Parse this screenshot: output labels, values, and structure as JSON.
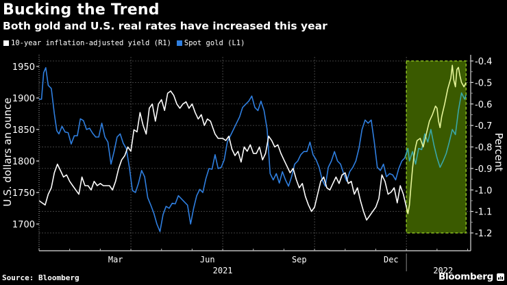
{
  "chart_data": {
    "type": "line",
    "title": "Bucking the Trend",
    "subtitle": "Both gold and U.S. real rates have increased this year",
    "legend": [
      {
        "name": "10-year inflation-adjusted yield (R1)",
        "color": "#ffffff",
        "axis": "right"
      },
      {
        "name": "Spot gold (L1)",
        "color": "#2f7fe0",
        "axis": "left"
      }
    ],
    "left_axis": {
      "label": "U.S. dollars an ounce",
      "ticks": [
        1700,
        1750,
        1800,
        1850,
        1900,
        1950
      ],
      "range": [
        1680,
        1960
      ]
    },
    "right_axis": {
      "label": "Percent",
      "ticks": [
        -0.4,
        -0.5,
        -0.6,
        -0.7,
        -0.8,
        -0.9,
        -1.0,
        -1.1,
        -1.2
      ],
      "tick_labels": [
        "-0.4",
        "-0.5",
        "-0.6",
        "-0.7",
        "-0.8",
        "-0.9",
        "-1.0",
        "-1.1",
        "-1.2"
      ],
      "range": [
        -1.2,
        -0.4
      ]
    },
    "x_axis": {
      "month_labels": [
        {
          "label": "Mar",
          "month": 2.5
        },
        {
          "label": "Jun",
          "month": 5.5
        },
        {
          "label": "Sep",
          "month": 8.5
        },
        {
          "label": "Dec",
          "month": 11.5
        }
      ],
      "year_labels": [
        {
          "label": "2021",
          "month": 6
        },
        {
          "label": "2022",
          "month": 13.2
        }
      ],
      "range_months": [
        0,
        14.1
      ],
      "quarter_gridlines": [
        3,
        6,
        9,
        12
      ]
    },
    "grid": true,
    "highlight": {
      "from_month": 12.0,
      "to_month": 13.95,
      "y_from": -1.2,
      "y_to": -0.4,
      "fill": "#3a5a00",
      "border": "#8dc021",
      "highlight_line_colors": {
        "yield": "#e6f59a",
        "gold": "#3aa7a8"
      }
    },
    "series": [
      {
        "name": "Spot gold (L1)",
        "axis": "left",
        "points_month_value": [
          [
            0.0,
            1898
          ],
          [
            0.08,
            1898
          ],
          [
            0.15,
            1940
          ],
          [
            0.22,
            1948
          ],
          [
            0.3,
            1920
          ],
          [
            0.4,
            1915
          ],
          [
            0.5,
            1875
          ],
          [
            0.58,
            1848
          ],
          [
            0.65,
            1843
          ],
          [
            0.75,
            1855
          ],
          [
            0.85,
            1846
          ],
          [
            0.95,
            1845
          ],
          [
            1.05,
            1827
          ],
          [
            1.15,
            1840
          ],
          [
            1.25,
            1840
          ],
          [
            1.35,
            1867
          ],
          [
            1.45,
            1864
          ],
          [
            1.55,
            1850
          ],
          [
            1.65,
            1852
          ],
          [
            1.75,
            1844
          ],
          [
            1.85,
            1838
          ],
          [
            1.95,
            1838
          ],
          [
            2.05,
            1860
          ],
          [
            2.15,
            1838
          ],
          [
            2.25,
            1830
          ],
          [
            2.35,
            1795
          ],
          [
            2.45,
            1815
          ],
          [
            2.55,
            1838
          ],
          [
            2.65,
            1843
          ],
          [
            2.75,
            1828
          ],
          [
            2.85,
            1820
          ],
          [
            2.95,
            1790
          ],
          [
            3.05,
            1753
          ],
          [
            3.15,
            1750
          ],
          [
            3.25,
            1765
          ],
          [
            3.35,
            1785
          ],
          [
            3.45,
            1775
          ],
          [
            3.55,
            1742
          ],
          [
            3.65,
            1730
          ],
          [
            3.75,
            1717
          ],
          [
            3.85,
            1700
          ],
          [
            3.95,
            1688
          ],
          [
            4.05,
            1715
          ],
          [
            4.15,
            1728
          ],
          [
            4.25,
            1725
          ],
          [
            4.35,
            1733
          ],
          [
            4.45,
            1732
          ],
          [
            4.55,
            1745
          ],
          [
            4.65,
            1740
          ],
          [
            4.75,
            1735
          ],
          [
            4.85,
            1730
          ],
          [
            4.95,
            1700
          ],
          [
            5.05,
            1725
          ],
          [
            5.15,
            1745
          ],
          [
            5.25,
            1755
          ],
          [
            5.35,
            1750
          ],
          [
            5.45,
            1772
          ],
          [
            5.55,
            1788
          ],
          [
            5.65,
            1787
          ],
          [
            5.75,
            1810
          ],
          [
            5.85,
            1788
          ],
          [
            5.95,
            1790
          ],
          [
            6.05,
            1802
          ],
          [
            6.15,
            1830
          ],
          [
            6.3,
            1845
          ],
          [
            6.45,
            1860
          ],
          [
            6.55,
            1870
          ],
          [
            6.65,
            1885
          ],
          [
            6.75,
            1890
          ],
          [
            6.85,
            1895
          ],
          [
            6.95,
            1903
          ],
          [
            7.05,
            1885
          ],
          [
            7.15,
            1880
          ],
          [
            7.25,
            1895
          ],
          [
            7.35,
            1880
          ],
          [
            7.45,
            1850
          ],
          [
            7.55,
            1780
          ],
          [
            7.65,
            1770
          ],
          [
            7.75,
            1780
          ],
          [
            7.85,
            1765
          ],
          [
            7.95,
            1783
          ],
          [
            8.05,
            1770
          ],
          [
            8.15,
            1760
          ],
          [
            8.25,
            1775
          ],
          [
            8.35,
            1795
          ],
          [
            8.45,
            1800
          ],
          [
            8.55,
            1810
          ],
          [
            8.65,
            1815
          ],
          [
            8.75,
            1815
          ],
          [
            8.85,
            1830
          ],
          [
            8.95,
            1810
          ],
          [
            9.05,
            1802
          ],
          [
            9.15,
            1790
          ],
          [
            9.25,
            1770
          ],
          [
            9.35,
            1760
          ],
          [
            9.45,
            1790
          ],
          [
            9.55,
            1800
          ],
          [
            9.65,
            1815
          ],
          [
            9.75,
            1800
          ],
          [
            9.85,
            1795
          ],
          [
            9.95,
            1780
          ],
          [
            10.05,
            1768
          ],
          [
            10.15,
            1783
          ],
          [
            10.25,
            1790
          ],
          [
            10.35,
            1800
          ],
          [
            10.45,
            1820
          ],
          [
            10.55,
            1850
          ],
          [
            10.65,
            1865
          ],
          [
            10.75,
            1860
          ],
          [
            10.85,
            1865
          ],
          [
            10.95,
            1830
          ],
          [
            11.05,
            1790
          ],
          [
            11.15,
            1785
          ],
          [
            11.25,
            1795
          ],
          [
            11.35,
            1775
          ],
          [
            11.45,
            1780
          ],
          [
            11.55,
            1778
          ],
          [
            11.65,
            1770
          ],
          [
            11.75,
            1788
          ],
          [
            11.85,
            1800
          ],
          [
            11.95,
            1805
          ],
          [
            12.05,
            1820
          ],
          [
            12.1,
            1800
          ],
          [
            12.2,
            1815
          ],
          [
            12.3,
            1795
          ],
          [
            12.4,
            1820
          ],
          [
            12.5,
            1818
          ],
          [
            12.6,
            1843
          ],
          [
            12.7,
            1830
          ],
          [
            12.8,
            1850
          ],
          [
            12.9,
            1825
          ],
          [
            13.0,
            1805
          ],
          [
            13.1,
            1790
          ],
          [
            13.2,
            1800
          ],
          [
            13.3,
            1812
          ],
          [
            13.4,
            1830
          ],
          [
            13.5,
            1850
          ],
          [
            13.6,
            1842
          ],
          [
            13.7,
            1880
          ],
          [
            13.8,
            1908
          ],
          [
            13.9,
            1898
          ],
          [
            13.95,
            1905
          ]
        ]
      },
      {
        "name": "10-year inflation-adjusted yield (R1)",
        "axis": "right",
        "points_month_value": [
          [
            0.0,
            -1.05
          ],
          [
            0.1,
            -1.06
          ],
          [
            0.2,
            -1.07
          ],
          [
            0.3,
            -1.02
          ],
          [
            0.4,
            -0.99
          ],
          [
            0.5,
            -0.92
          ],
          [
            0.6,
            -0.88
          ],
          [
            0.7,
            -0.91
          ],
          [
            0.8,
            -0.94
          ],
          [
            0.9,
            -0.93
          ],
          [
            1.0,
            -0.96
          ],
          [
            1.1,
            -0.98
          ],
          [
            1.2,
            -1.0
          ],
          [
            1.3,
            -1.02
          ],
          [
            1.4,
            -0.94
          ],
          [
            1.5,
            -0.98
          ],
          [
            1.6,
            -0.98
          ],
          [
            1.7,
            -1.0
          ],
          [
            1.8,
            -0.96
          ],
          [
            1.9,
            -0.98
          ],
          [
            2.0,
            -0.97
          ],
          [
            2.1,
            -0.98
          ],
          [
            2.2,
            -0.98
          ],
          [
            2.3,
            -0.98
          ],
          [
            2.4,
            -1.0
          ],
          [
            2.5,
            -0.96
          ],
          [
            2.6,
            -0.9
          ],
          [
            2.7,
            -0.86
          ],
          [
            2.8,
            -0.84
          ],
          [
            2.9,
            -0.8
          ],
          [
            3.0,
            -0.82
          ],
          [
            3.1,
            -0.72
          ],
          [
            3.2,
            -0.73
          ],
          [
            3.3,
            -0.64
          ],
          [
            3.4,
            -0.7
          ],
          [
            3.5,
            -0.74
          ],
          [
            3.6,
            -0.62
          ],
          [
            3.7,
            -0.6
          ],
          [
            3.8,
            -0.68
          ],
          [
            3.9,
            -0.6
          ],
          [
            4.0,
            -0.58
          ],
          [
            4.1,
            -0.63
          ],
          [
            4.2,
            -0.55
          ],
          [
            4.3,
            -0.54
          ],
          [
            4.4,
            -0.56
          ],
          [
            4.5,
            -0.6
          ],
          [
            4.6,
            -0.62
          ],
          [
            4.7,
            -0.6
          ],
          [
            4.8,
            -0.59
          ],
          [
            4.9,
            -0.62
          ],
          [
            5.0,
            -0.6
          ],
          [
            5.1,
            -0.64
          ],
          [
            5.2,
            -0.67
          ],
          [
            5.3,
            -0.65
          ],
          [
            5.4,
            -0.7
          ],
          [
            5.5,
            -0.67
          ],
          [
            5.6,
            -0.68
          ],
          [
            5.75,
            -0.74
          ],
          [
            5.85,
            -0.76
          ],
          [
            6.0,
            -0.76
          ],
          [
            6.1,
            -0.77
          ],
          [
            6.2,
            -0.75
          ],
          [
            6.3,
            -0.81
          ],
          [
            6.4,
            -0.84
          ],
          [
            6.5,
            -0.82
          ],
          [
            6.6,
            -0.87
          ],
          [
            6.7,
            -0.8
          ],
          [
            6.8,
            -0.82
          ],
          [
            6.9,
            -0.79
          ],
          [
            7.0,
            -0.83
          ],
          [
            7.1,
            -0.83
          ],
          [
            7.2,
            -0.8
          ],
          [
            7.3,
            -0.86
          ],
          [
            7.4,
            -0.83
          ],
          [
            7.5,
            -0.75
          ],
          [
            7.6,
            -0.77
          ],
          [
            7.7,
            -0.8
          ],
          [
            7.8,
            -0.79
          ],
          [
            7.9,
            -0.83
          ],
          [
            8.0,
            -0.86
          ],
          [
            8.1,
            -0.89
          ],
          [
            8.2,
            -0.92
          ],
          [
            8.3,
            -0.9
          ],
          [
            8.4,
            -0.95
          ],
          [
            8.5,
            -0.99
          ],
          [
            8.6,
            -0.97
          ],
          [
            8.7,
            -1.03
          ],
          [
            8.8,
            -1.07
          ],
          [
            8.9,
            -1.1
          ],
          [
            9.0,
            -1.08
          ],
          [
            9.1,
            -1.02
          ],
          [
            9.2,
            -0.96
          ],
          [
            9.3,
            -0.94
          ],
          [
            9.4,
            -0.99
          ],
          [
            9.5,
            -1.0
          ],
          [
            9.6,
            -0.97
          ],
          [
            9.7,
            -0.94
          ],
          [
            9.8,
            -0.97
          ],
          [
            9.9,
            -0.93
          ],
          [
            10.0,
            -0.92
          ],
          [
            10.1,
            -0.97
          ],
          [
            10.2,
            -0.96
          ],
          [
            10.3,
            -1.02
          ],
          [
            10.4,
            -0.99
          ],
          [
            10.5,
            -1.05
          ],
          [
            10.6,
            -1.1
          ],
          [
            10.7,
            -1.14
          ],
          [
            10.8,
            -1.12
          ],
          [
            10.9,
            -1.1
          ],
          [
            11.0,
            -1.08
          ],
          [
            11.1,
            -1.04
          ],
          [
            11.2,
            -0.93
          ],
          [
            11.3,
            -0.96
          ],
          [
            11.4,
            -1.02
          ],
          [
            11.5,
            -1.01
          ],
          [
            11.6,
            -0.99
          ],
          [
            11.7,
            -1.06
          ],
          [
            11.8,
            -0.98
          ],
          [
            11.9,
            -1.02
          ],
          [
            12.0,
            -1.08
          ],
          [
            12.05,
            -1.11
          ],
          [
            12.1,
            -1.07
          ],
          [
            12.15,
            -0.98
          ],
          [
            12.2,
            -0.9
          ],
          [
            12.25,
            -0.84
          ],
          [
            12.3,
            -0.8
          ],
          [
            12.35,
            -0.77
          ],
          [
            12.45,
            -0.76
          ],
          [
            12.55,
            -0.8
          ],
          [
            12.65,
            -0.74
          ],
          [
            12.75,
            -0.68
          ],
          [
            12.85,
            -0.65
          ],
          [
            12.95,
            -0.61
          ],
          [
            13.0,
            -0.62
          ],
          [
            13.05,
            -0.68
          ],
          [
            13.1,
            -0.71
          ],
          [
            13.15,
            -0.66
          ],
          [
            13.25,
            -0.6
          ],
          [
            13.35,
            -0.53
          ],
          [
            13.45,
            -0.48
          ],
          [
            13.5,
            -0.42
          ],
          [
            13.55,
            -0.49
          ],
          [
            13.6,
            -0.52
          ],
          [
            13.65,
            -0.44
          ],
          [
            13.7,
            -0.43
          ],
          [
            13.75,
            -0.47
          ],
          [
            13.8,
            -0.5
          ],
          [
            13.88,
            -0.52
          ],
          [
            13.95,
            -0.5
          ]
        ]
      }
    ]
  },
  "source": "Source: Bloomberg",
  "brand": "Bloomberg"
}
